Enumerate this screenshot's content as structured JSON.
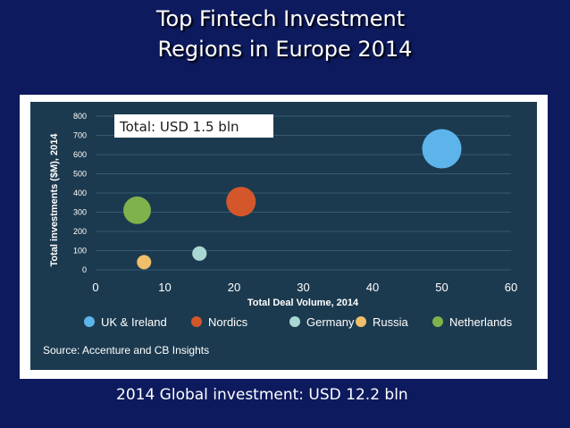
{
  "slide": {
    "title_line1": "Top Fintech Investment",
    "title_line2": "Regions in Europe 2014",
    "total_note": "Total: USD 1.5 bln",
    "footer": "2014 Global investment: USD 12.2 bln",
    "source": "Source: Accenture and CB Insights"
  },
  "colors": {
    "background": "#0d1a5e",
    "panel": "#1c3a4f"
  },
  "chart_data": {
    "type": "scatter",
    "xlabel": "Total Deal Volume, 2014",
    "ylabel": "Total investments ($M), 2014",
    "xlim": [
      0,
      60
    ],
    "ylim": [
      0,
      800
    ],
    "xticks": [
      0,
      10,
      20,
      30,
      40,
      50,
      60
    ],
    "yticks": [
      0,
      100,
      200,
      300,
      400,
      500,
      600,
      700,
      800
    ],
    "grid": true,
    "legend_position": "bottom",
    "series": [
      {
        "name": "UK & Ireland",
        "x": 50,
        "y": 630,
        "color": "#5db4ea"
      },
      {
        "name": "Nordics",
        "x": 21,
        "y": 355,
        "color": "#d4572b"
      },
      {
        "name": "Germany",
        "x": 15,
        "y": 85,
        "color": "#a9d8d3"
      },
      {
        "name": "Russia",
        "x": 7,
        "y": 40,
        "color": "#f0bf6a"
      },
      {
        "name": "Netherlands",
        "x": 6,
        "y": 310,
        "color": "#7fb24a"
      }
    ]
  }
}
